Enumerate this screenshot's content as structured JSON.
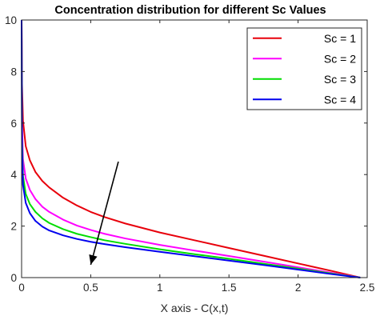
{
  "chart_data": {
    "type": "line",
    "title": "Concentration distribution for different Sc Values",
    "xlabel": "X axis - C(x,t)",
    "ylabel": "",
    "xlim": [
      0,
      2.5
    ],
    "ylim": [
      0,
      10
    ],
    "xticks": [
      0,
      0.5,
      1,
      1.5,
      2,
      2.5
    ],
    "xtick_labels": [
      "0",
      "0.5",
      "1",
      "1.5",
      "2",
      "2.5"
    ],
    "yticks": [
      0,
      2,
      4,
      6,
      8,
      10
    ],
    "ytick_labels": [
      "0",
      "2",
      "4",
      "6",
      "8",
      "10"
    ],
    "grid": false,
    "legend_position": "top-right",
    "series": [
      {
        "name": "Sc = 1",
        "color": "#e8000b",
        "points": [
          [
            0,
            10
          ],
          [
            0.003,
            7.5
          ],
          [
            0.01,
            6.1
          ],
          [
            0.03,
            5.1
          ],
          [
            0.06,
            4.55
          ],
          [
            0.1,
            4.1
          ],
          [
            0.15,
            3.75
          ],
          [
            0.2,
            3.5
          ],
          [
            0.3,
            3.1
          ],
          [
            0.4,
            2.8
          ],
          [
            0.5,
            2.55
          ],
          [
            0.6,
            2.35
          ],
          [
            0.75,
            2.1
          ],
          [
            1.0,
            1.75
          ],
          [
            1.25,
            1.45
          ],
          [
            1.5,
            1.15
          ],
          [
            1.75,
            0.85
          ],
          [
            2.0,
            0.55
          ],
          [
            2.25,
            0.25
          ],
          [
            2.45,
            0
          ]
        ]
      },
      {
        "name": "Sc = 2",
        "color": "#ff00ff",
        "points": [
          [
            0,
            10
          ],
          [
            0.003,
            6.0
          ],
          [
            0.01,
            4.6
          ],
          [
            0.03,
            3.85
          ],
          [
            0.06,
            3.4
          ],
          [
            0.1,
            3.05
          ],
          [
            0.15,
            2.75
          ],
          [
            0.2,
            2.55
          ],
          [
            0.3,
            2.25
          ],
          [
            0.4,
            2.02
          ],
          [
            0.5,
            1.85
          ],
          [
            0.6,
            1.7
          ],
          [
            0.75,
            1.52
          ],
          [
            1.0,
            1.27
          ],
          [
            1.25,
            1.05
          ],
          [
            1.5,
            0.84
          ],
          [
            1.75,
            0.62
          ],
          [
            2.0,
            0.4
          ],
          [
            2.25,
            0.18
          ],
          [
            2.45,
            0
          ]
        ]
      },
      {
        "name": "Sc = 3",
        "color": "#00dd00",
        "points": [
          [
            0,
            10
          ],
          [
            0.003,
            5.4
          ],
          [
            0.01,
            3.95
          ],
          [
            0.03,
            3.25
          ],
          [
            0.06,
            2.85
          ],
          [
            0.1,
            2.55
          ],
          [
            0.15,
            2.3
          ],
          [
            0.2,
            2.12
          ],
          [
            0.3,
            1.88
          ],
          [
            0.4,
            1.7
          ],
          [
            0.5,
            1.57
          ],
          [
            0.6,
            1.45
          ],
          [
            0.75,
            1.31
          ],
          [
            1.0,
            1.1
          ],
          [
            1.25,
            0.91
          ],
          [
            1.5,
            0.73
          ],
          [
            1.75,
            0.54
          ],
          [
            2.0,
            0.35
          ],
          [
            2.25,
            0.15
          ],
          [
            2.45,
            0
          ]
        ]
      },
      {
        "name": "Sc = 4",
        "color": "#0000ee",
        "points": [
          [
            0,
            10
          ],
          [
            0.003,
            5.0
          ],
          [
            0.01,
            3.6
          ],
          [
            0.03,
            2.9
          ],
          [
            0.06,
            2.5
          ],
          [
            0.1,
            2.2
          ],
          [
            0.15,
            1.98
          ],
          [
            0.2,
            1.83
          ],
          [
            0.3,
            1.64
          ],
          [
            0.4,
            1.5
          ],
          [
            0.5,
            1.39
          ],
          [
            0.6,
            1.3
          ],
          [
            0.75,
            1.18
          ],
          [
            1.0,
            1.0
          ],
          [
            1.25,
            0.83
          ],
          [
            1.5,
            0.66
          ],
          [
            1.75,
            0.49
          ],
          [
            2.0,
            0.31
          ],
          [
            2.25,
            0.13
          ],
          [
            2.45,
            0
          ]
        ]
      }
    ],
    "annotations": [
      {
        "type": "arrow",
        "from": [
          0.7,
          4.5
        ],
        "to": [
          0.5,
          0.5
        ]
      }
    ]
  }
}
